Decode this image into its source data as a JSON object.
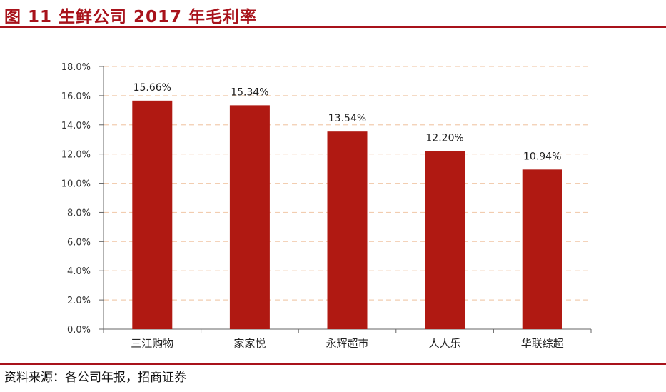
{
  "figure": {
    "title": "图 11  生鲜公司 2017 年毛利率",
    "source": "资料来源：各公司年报，招商证券"
  },
  "colors": {
    "accent": "#a8121b",
    "bar": "#b01912",
    "grid": "#f2cdb0"
  },
  "chart_data": {
    "type": "bar",
    "categories": [
      "三江购物",
      "家家悦",
      "永辉超市",
      "人人乐",
      "华联综超"
    ],
    "values": [
      15.66,
      15.34,
      13.54,
      12.2,
      10.94
    ],
    "data_labels": [
      "15.66%",
      "15.34%",
      "13.54%",
      "12.20%",
      "10.94%"
    ],
    "title": "",
    "xlabel": "",
    "ylabel": "",
    "ylim": [
      0,
      18
    ],
    "yticks": [
      0,
      2,
      4,
      6,
      8,
      10,
      12,
      14,
      16,
      18
    ],
    "ytick_labels": [
      "0.0%",
      "2.0%",
      "4.0%",
      "6.0%",
      "8.0%",
      "10.0%",
      "12.0%",
      "14.0%",
      "16.0%",
      "18.0%"
    ],
    "grid": true,
    "grid_style": "dashed",
    "legend": "none"
  }
}
